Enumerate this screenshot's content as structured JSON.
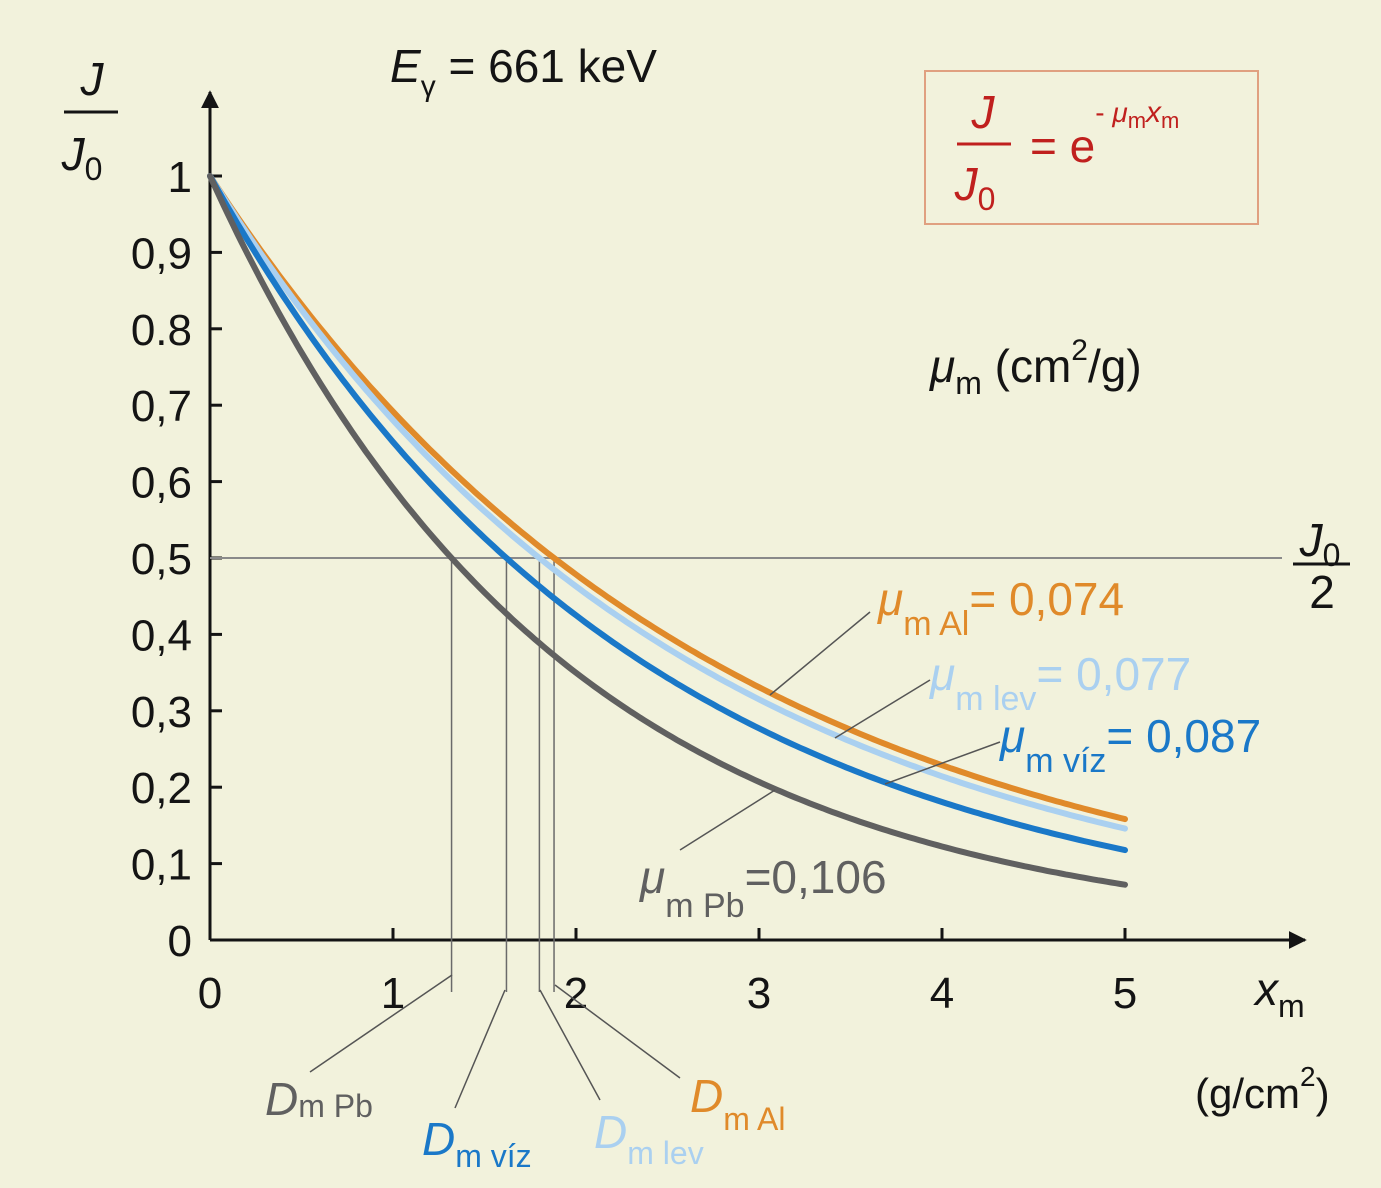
{
  "chart_data": {
    "type": "line",
    "title_prefix": "E",
    "title_sub": "γ",
    "title_rest": " = 661 keV",
    "y_label": {
      "num": "J",
      "den": "J",
      "den_sub": "0"
    },
    "x_label": {
      "main": "x",
      "sub": "m",
      "unit": "(g/cm",
      "unit_sup": "2",
      "unit_end": ")"
    },
    "xlim": [
      0,
      5
    ],
    "ylim": [
      0,
      1
    ],
    "x_ticks": [
      {
        "v": 0,
        "label": "0"
      },
      {
        "v": 1,
        "label": "1"
      },
      {
        "v": 2,
        "label": "2"
      },
      {
        "v": 3,
        "label": "3"
      },
      {
        "v": 4,
        "label": "4"
      },
      {
        "v": 5,
        "label": "5"
      }
    ],
    "y_ticks": [
      {
        "v": 0,
        "label": "0"
      },
      {
        "v": 0.1,
        "label": "0,1"
      },
      {
        "v": 0.2,
        "label": "0,2"
      },
      {
        "v": 0.3,
        "label": "0,3"
      },
      {
        "v": 0.4,
        "label": "0,4"
      },
      {
        "v": 0.5,
        "label": "0,5"
      },
      {
        "v": 0.6,
        "label": "0,6"
      },
      {
        "v": 0.7,
        "label": "0,7"
      },
      {
        "v": 0.8,
        "label": "0.8"
      },
      {
        "v": 0.9,
        "label": "0,9"
      },
      {
        "v": 1,
        "label": "1"
      }
    ],
    "half_line": {
      "y": 0.5,
      "num": "J",
      "num_sub": "0",
      "den": "2"
    },
    "formula": {
      "lhs_num": "J",
      "lhs_den": "J",
      "lhs_den_sub": "0",
      "eq": "= e",
      "exp_sign": "- ",
      "exp_mu": "μ",
      "exp_mu_sub": "m",
      "exp_x": "x",
      "exp_x_sub": "m"
    },
    "mu_unit": {
      "mu": "μ",
      "sub": "m",
      "unit": " (cm",
      "sup": "2",
      "end": "/g)"
    },
    "series": [
      {
        "key": "al",
        "mu": 0.074,
        "mu_sub": "m Al",
        "value_text": "= 0,074",
        "d_sub": "m Al",
        "color": "#e08a2a",
        "x_max": 5.0
      },
      {
        "key": "lev",
        "mu": 0.077,
        "mu_sub": "m lev",
        "value_text": "= 0,077",
        "d_sub": "m lev",
        "color": "#aad0f0",
        "x_max": 5.0
      },
      {
        "key": "viz",
        "mu": 0.087,
        "mu_sub": "m víz",
        "value_text": "= 0,087",
        "d_sub": "m víz",
        "color": "#1a78c8",
        "x_max": 5.0
      },
      {
        "key": "pb",
        "mu": 0.106,
        "mu_sub": "m Pb",
        "value_text": "=0,106",
        "d_sub": "m Pb",
        "color": "#606060",
        "x_max": 5.0
      }
    ],
    "half_values": [
      {
        "key": "pb",
        "x": 1.32
      },
      {
        "key": "viz",
        "x": 1.62
      },
      {
        "key": "lev",
        "x": 1.8
      },
      {
        "key": "al",
        "x": 1.88
      }
    ],
    "grid": false,
    "legend": "inline labels"
  }
}
